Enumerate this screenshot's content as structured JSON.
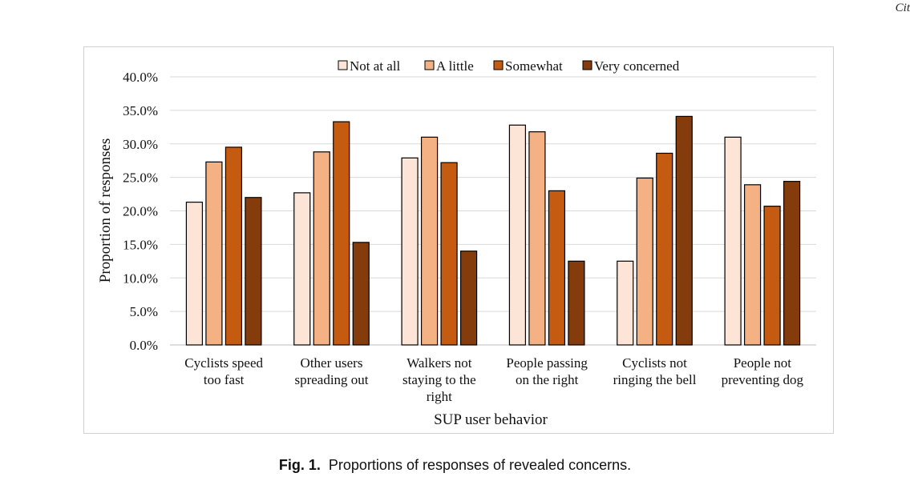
{
  "page": {
    "corner_text": "Cit"
  },
  "caption": {
    "label": "Fig. 1.",
    "text": "Proportions of responses of revealed concerns."
  },
  "chart_data": {
    "type": "bar",
    "xlabel": "SUP user behavior",
    "ylabel": "Proportion of responses",
    "ylim": [
      0,
      40
    ],
    "yticks": [
      "0.0%",
      "5.0%",
      "10.0%",
      "15.0%",
      "20.0%",
      "25.0%",
      "30.0%",
      "35.0%",
      "40.0%"
    ],
    "grid": true,
    "legend_position": "top",
    "categories": [
      [
        "Cyclists speed",
        "too fast"
      ],
      [
        "Other users",
        "spreading out"
      ],
      [
        "Walkers not",
        "staying to the",
        "right"
      ],
      [
        "People passing",
        "on the right"
      ],
      [
        "Cyclists not",
        "ringing the bell"
      ],
      [
        "People not",
        "preventing dog"
      ]
    ],
    "series": [
      {
        "name": "Not at all",
        "color": "#fce4d6",
        "values": [
          21.3,
          22.7,
          27.9,
          32.8,
          12.5,
          31.0
        ]
      },
      {
        "name": "A little",
        "color": "#f4b183",
        "values": [
          27.3,
          28.8,
          31.0,
          31.8,
          24.9,
          23.9
        ]
      },
      {
        "name": "Somewhat",
        "color": "#c55a11",
        "values": [
          29.5,
          33.3,
          27.2,
          23.0,
          28.6,
          20.7
        ]
      },
      {
        "name": "Very concerned",
        "color": "#843c0c",
        "values": [
          22.0,
          15.3,
          14.0,
          12.5,
          34.1,
          24.4
        ]
      }
    ]
  }
}
